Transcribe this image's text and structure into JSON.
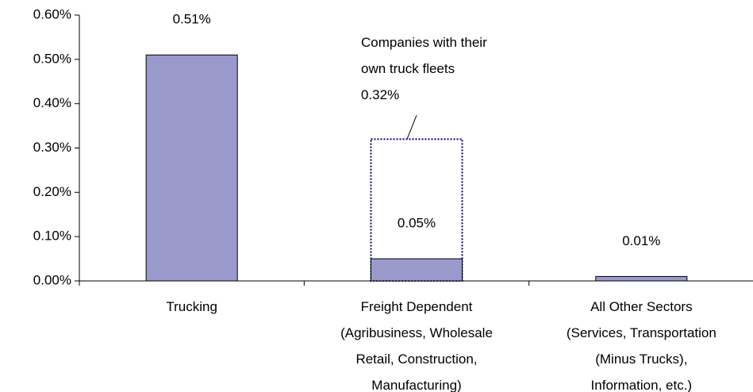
{
  "chart_data": {
    "type": "bar",
    "categories": [
      "Trucking",
      "Freight Dependent\n(Agribusiness, Wholesale\nRetail, Construction,\nManufacturing)",
      "All Other Sectors\n(Services, Transportation\n(Minus Trucks),\nInformation, etc.)"
    ],
    "values": [
      0.51,
      0.05,
      0.01
    ],
    "value_labels": [
      "0.51%",
      "0.05%",
      "0.01%"
    ],
    "color": "#9999cc",
    "overlay": {
      "name": "Companies with their own truck fleets",
      "category": 1,
      "value": 0.32,
      "value_label": "0.32%",
      "color": "#000080"
    },
    "ylim": [
      0,
      0.6
    ],
    "yticks": [
      {
        "value": 0,
        "label": "0.00%"
      },
      {
        "value": 0.1,
        "label": "0.10%"
      },
      {
        "value": 0.2,
        "label": "0.20%"
      },
      {
        "value": 0.3,
        "label": "0.30%"
      },
      {
        "value": 0.4,
        "label": "0.40%"
      },
      {
        "value": 0.5,
        "label": "0.50%"
      },
      {
        "value": 0.6,
        "label": "0.60%"
      }
    ]
  }
}
